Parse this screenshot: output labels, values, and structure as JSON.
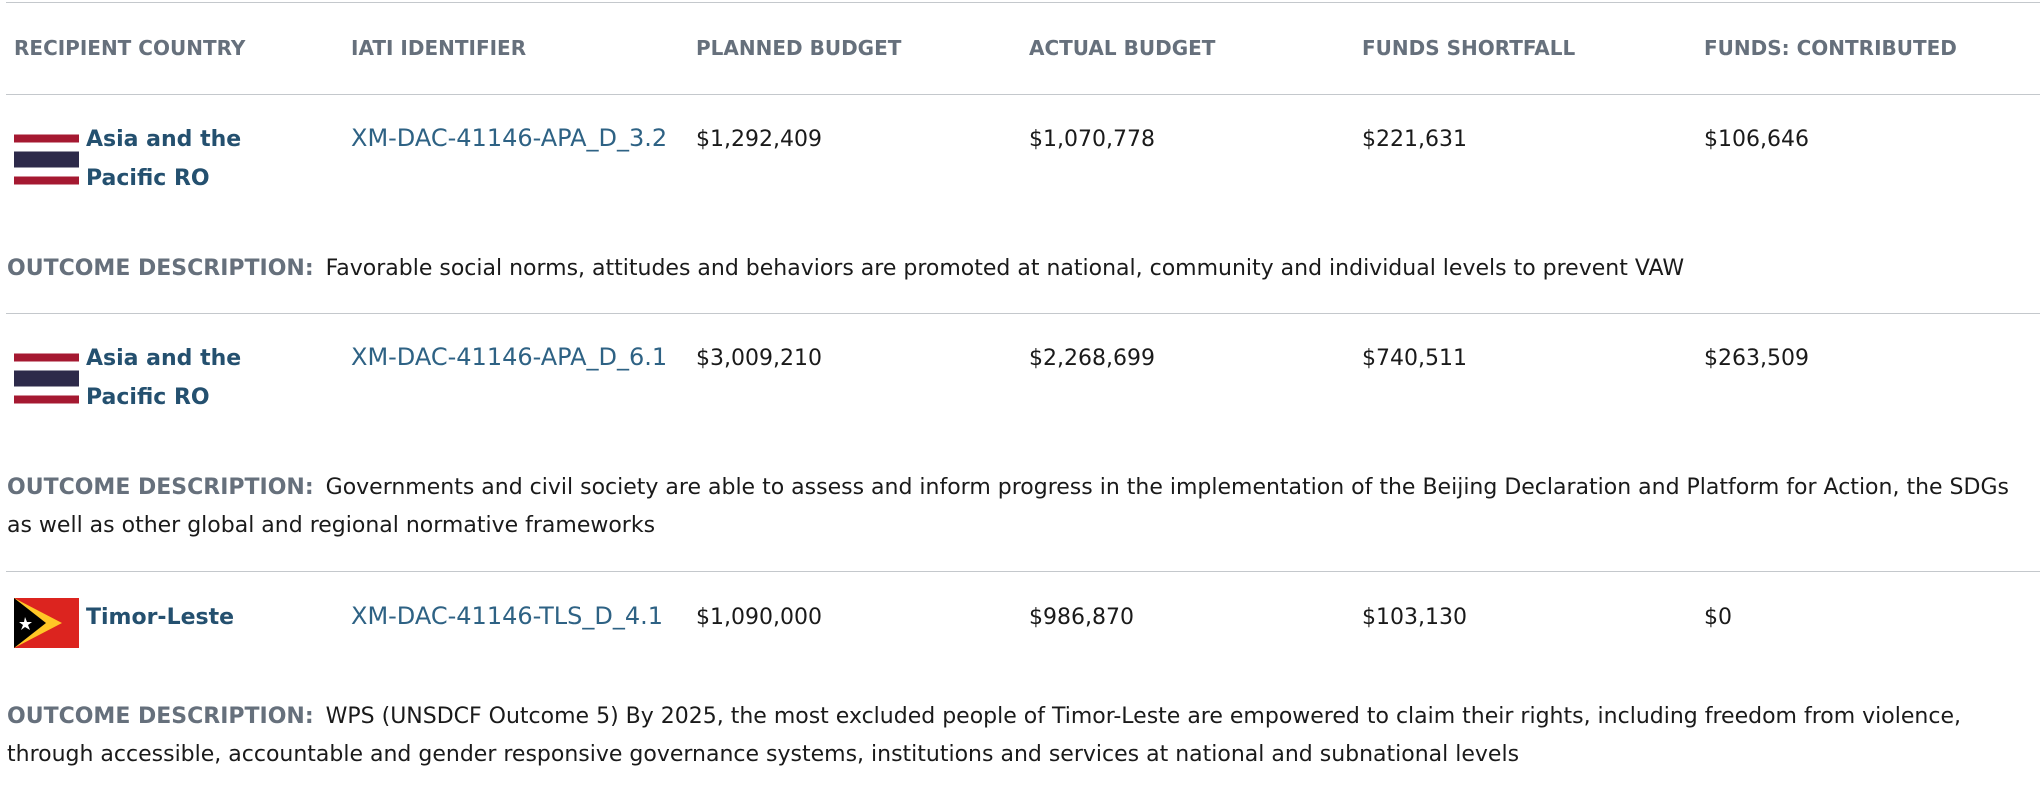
{
  "table": {
    "headers": [
      "RECIPIENT COUNTRY",
      "IATI IDENTIFIER",
      "PLANNED BUDGET",
      "ACTUAL BUDGET",
      "FUNDS SHORTFALL",
      "FUNDS: CONTRIBUTED"
    ],
    "outcome_label": "OUTCOME DESCRIPTION:",
    "rows": [
      {
        "flag": "thailand",
        "country": "Asia and the Pacific RO",
        "iati_identifier": "XM-DAC-41146-APA_D_3.2",
        "planned_budget": "$1,292,409",
        "actual_budget": "$1,070,778",
        "funds_shortfall": "$221,631",
        "funds_contributed": "$106,646",
        "outcome_description": "Favorable social norms, attitudes and behaviors are promoted at national, community and individual levels to prevent VAW"
      },
      {
        "flag": "thailand",
        "country": "Asia and the Pacific RO",
        "iati_identifier": "XM-DAC-41146-APA_D_6.1",
        "planned_budget": "$3,009,210",
        "actual_budget": "$2,268,699",
        "funds_shortfall": "$740,511",
        "funds_contributed": "$263,509",
        "outcome_description": "Governments and civil society are able to assess and inform progress in the implementation of the Beijing Declaration and Platform for Action, the SDGs as well as other global and regional normative frameworks"
      },
      {
        "flag": "timor-leste",
        "country": "Timor-Leste",
        "iati_identifier": "XM-DAC-41146-TLS_D_4.1",
        "planned_budget": "$1,090,000",
        "actual_budget": "$986,870",
        "funds_shortfall": "$103,130",
        "funds_contributed": "$0",
        "outcome_description": "WPS (UNSDCF Outcome 5) By 2025, the most excluded people of Timor-Leste are empowered to claim their rights, including freedom from violence, through accessible, accountable and gender responsive governance systems, institutions and services at national and subnational levels"
      }
    ]
  }
}
